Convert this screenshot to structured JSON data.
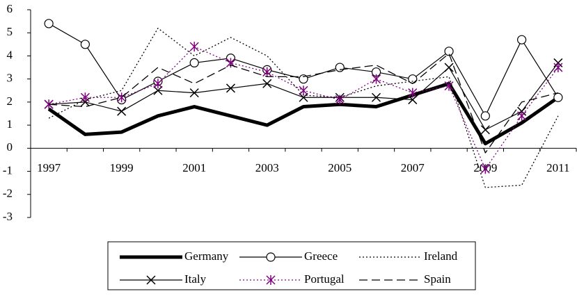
{
  "chart_data": {
    "type": "line",
    "categories": [
      "1997",
      null,
      "1999",
      null,
      "2001",
      null,
      "2003",
      null,
      "2005",
      null,
      "2007",
      null,
      "2009",
      null,
      "2011"
    ],
    "ylim": [
      -3,
      6
    ],
    "yticks": [
      -3,
      -2,
      -1,
      0,
      1,
      2,
      3,
      4,
      5,
      6
    ],
    "series": [
      {
        "name": "Germany",
        "color": "#000000",
        "style": "thick",
        "marker": "none",
        "values": [
          1.7,
          0.6,
          0.7,
          1.4,
          1.8,
          1.4,
          1.0,
          1.8,
          1.9,
          1.8,
          2.3,
          2.8,
          0.2,
          1.1,
          2.2
        ]
      },
      {
        "name": "Greece",
        "color": "#000000",
        "style": "solid",
        "marker": "circle",
        "values": [
          5.4,
          4.5,
          2.1,
          2.9,
          3.7,
          3.9,
          3.4,
          3.0,
          3.5,
          3.3,
          3.0,
          4.2,
          1.4,
          4.7,
          2.2
        ]
      },
      {
        "name": "Ireland",
        "color": "#000000",
        "style": "dotted",
        "marker": "none",
        "values": [
          1.3,
          2.1,
          2.5,
          5.2,
          4.0,
          4.8,
          4.0,
          2.3,
          2.2,
          2.7,
          2.9,
          3.1,
          -1.7,
          -1.6,
          1.4
        ]
      },
      {
        "name": "Italy",
        "color": "#000000",
        "style": "solid",
        "marker": "x",
        "values": [
          1.9,
          2.0,
          1.6,
          2.5,
          2.4,
          2.6,
          2.8,
          2.2,
          2.2,
          2.2,
          2.1,
          3.5,
          0.8,
          1.6,
          3.7
        ]
      },
      {
        "name": "Portugal",
        "color": "#800080",
        "style": "dotted",
        "marker": "asterisk",
        "values": [
          1.9,
          2.2,
          2.2,
          2.8,
          4.4,
          3.7,
          3.3,
          2.5,
          2.1,
          3.0,
          2.4,
          2.7,
          -0.9,
          1.4,
          3.5
        ]
      },
      {
        "name": "Spain",
        "color": "#000000",
        "style": "dashed",
        "marker": "none",
        "values": [
          1.9,
          1.8,
          2.2,
          3.5,
          2.8,
          3.6,
          3.1,
          3.1,
          3.4,
          3.6,
          2.8,
          4.1,
          -0.2,
          2.0,
          2.4
        ]
      }
    ]
  }
}
